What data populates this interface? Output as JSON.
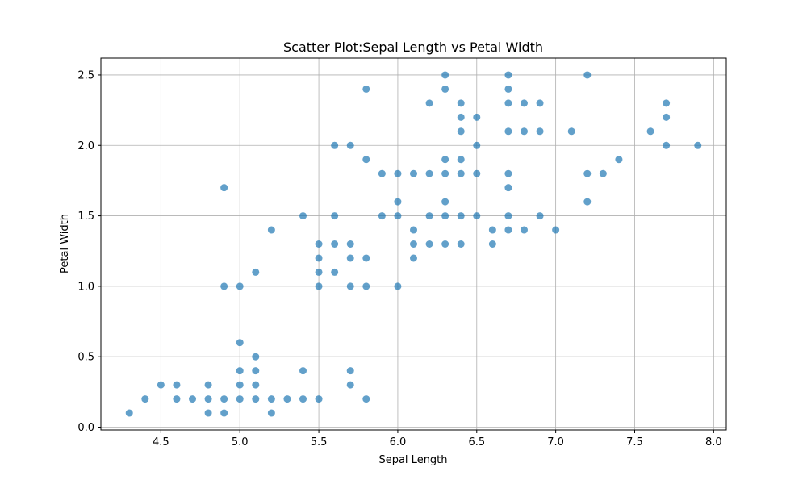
{
  "chart_data": {
    "type": "scatter",
    "title": "Scatter Plot:Sepal Length vs Petal Width",
    "xlabel": "Sepal Length",
    "ylabel": "Petal Width",
    "xlim": [
      4.12,
      8.08
    ],
    "ylim": [
      -0.02,
      2.62
    ],
    "x_ticks": [
      "4.5",
      "5.0",
      "5.5",
      "6.0",
      "6.5",
      "7.0",
      "7.5",
      "8.0"
    ],
    "y_ticks": [
      "0.0",
      "0.5",
      "1.0",
      "1.5",
      "2.0",
      "2.5"
    ],
    "grid": true,
    "marker_color": "#1f77b4",
    "marker_alpha": 0.7,
    "points": [
      [
        4.3,
        0.1
      ],
      [
        4.4,
        0.2
      ],
      [
        4.5,
        0.3
      ],
      [
        4.6,
        0.2
      ],
      [
        4.6,
        0.3
      ],
      [
        4.7,
        0.2
      ],
      [
        4.8,
        0.1
      ],
      [
        4.8,
        0.2
      ],
      [
        4.8,
        0.3
      ],
      [
        4.9,
        0.1
      ],
      [
        4.9,
        0.2
      ],
      [
        4.9,
        1.0
      ],
      [
        4.9,
        1.7
      ],
      [
        5.0,
        0.2
      ],
      [
        5.0,
        0.3
      ],
      [
        5.0,
        0.4
      ],
      [
        5.0,
        0.6
      ],
      [
        5.0,
        1.0
      ],
      [
        5.1,
        0.2
      ],
      [
        5.1,
        0.3
      ],
      [
        5.1,
        0.4
      ],
      [
        5.1,
        0.5
      ],
      [
        5.1,
        1.1
      ],
      [
        5.2,
        0.1
      ],
      [
        5.2,
        0.2
      ],
      [
        5.2,
        1.4
      ],
      [
        5.3,
        0.2
      ],
      [
        5.4,
        0.2
      ],
      [
        5.4,
        0.4
      ],
      [
        5.4,
        1.5
      ],
      [
        5.5,
        0.2
      ],
      [
        5.5,
        1.0
      ],
      [
        5.5,
        1.1
      ],
      [
        5.5,
        1.2
      ],
      [
        5.5,
        1.3
      ],
      [
        5.6,
        1.1
      ],
      [
        5.6,
        1.3
      ],
      [
        5.6,
        1.5
      ],
      [
        5.6,
        2.0
      ],
      [
        5.7,
        0.3
      ],
      [
        5.7,
        0.4
      ],
      [
        5.7,
        1.0
      ],
      [
        5.7,
        1.2
      ],
      [
        5.7,
        1.3
      ],
      [
        5.7,
        2.0
      ],
      [
        5.8,
        0.2
      ],
      [
        5.8,
        1.0
      ],
      [
        5.8,
        1.2
      ],
      [
        5.8,
        1.9
      ],
      [
        5.8,
        2.4
      ],
      [
        5.9,
        1.5
      ],
      [
        5.9,
        1.8
      ],
      [
        6.0,
        1.0
      ],
      [
        6.0,
        1.5
      ],
      [
        6.0,
        1.6
      ],
      [
        6.0,
        1.8
      ],
      [
        6.1,
        1.2
      ],
      [
        6.1,
        1.3
      ],
      [
        6.1,
        1.4
      ],
      [
        6.1,
        1.8
      ],
      [
        6.2,
        1.3
      ],
      [
        6.2,
        1.5
      ],
      [
        6.2,
        1.8
      ],
      [
        6.2,
        2.3
      ],
      [
        6.3,
        1.3
      ],
      [
        6.3,
        1.5
      ],
      [
        6.3,
        1.6
      ],
      [
        6.3,
        1.8
      ],
      [
        6.3,
        1.9
      ],
      [
        6.3,
        2.4
      ],
      [
        6.3,
        2.5
      ],
      [
        6.4,
        1.3
      ],
      [
        6.4,
        1.5
      ],
      [
        6.4,
        1.8
      ],
      [
        6.4,
        1.9
      ],
      [
        6.4,
        2.1
      ],
      [
        6.4,
        2.2
      ],
      [
        6.4,
        2.3
      ],
      [
        6.5,
        1.5
      ],
      [
        6.5,
        1.8
      ],
      [
        6.5,
        2.0
      ],
      [
        6.5,
        2.2
      ],
      [
        6.6,
        1.3
      ],
      [
        6.6,
        1.4
      ],
      [
        6.7,
        1.4
      ],
      [
        6.7,
        1.5
      ],
      [
        6.7,
        1.7
      ],
      [
        6.7,
        1.8
      ],
      [
        6.7,
        2.1
      ],
      [
        6.7,
        2.3
      ],
      [
        6.7,
        2.4
      ],
      [
        6.7,
        2.5
      ],
      [
        6.8,
        1.4
      ],
      [
        6.8,
        2.1
      ],
      [
        6.8,
        2.3
      ],
      [
        6.9,
        1.5
      ],
      [
        6.9,
        2.1
      ],
      [
        6.9,
        2.3
      ],
      [
        7.0,
        1.4
      ],
      [
        7.1,
        2.1
      ],
      [
        7.2,
        1.6
      ],
      [
        7.2,
        1.8
      ],
      [
        7.2,
        2.5
      ],
      [
        7.3,
        1.8
      ],
      [
        7.4,
        1.9
      ],
      [
        7.6,
        2.1
      ],
      [
        7.7,
        2.0
      ],
      [
        7.7,
        2.2
      ],
      [
        7.7,
        2.3
      ],
      [
        7.9,
        2.0
      ]
    ]
  }
}
